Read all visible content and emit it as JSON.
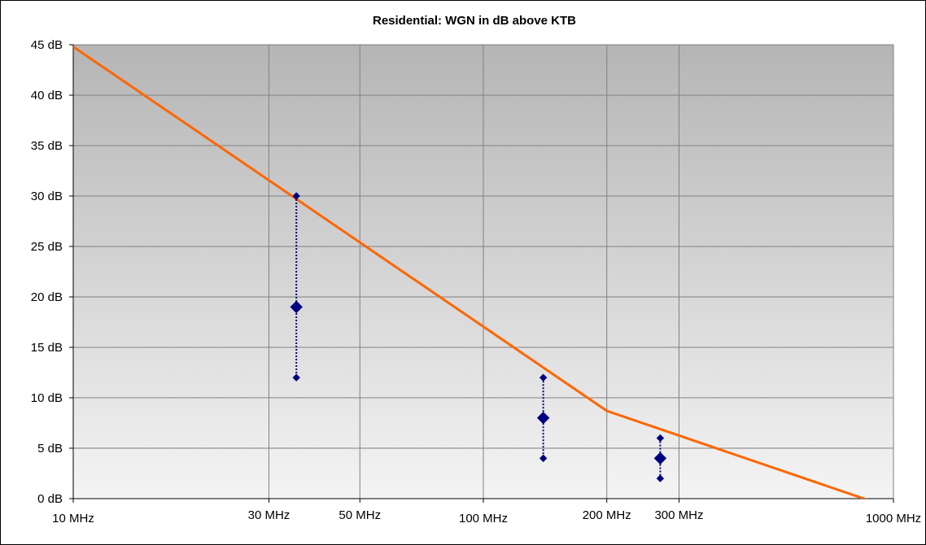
{
  "chart_data": {
    "type": "line",
    "title": "Residential: WGN in dB above KTB",
    "xlabel": "",
    "ylabel": "",
    "x_scale": "log",
    "xlim": [
      10,
      1000
    ],
    "ylim": [
      0,
      45
    ],
    "x_ticks": [
      {
        "value": 10,
        "label": "10 MHz"
      },
      {
        "value": 30,
        "label": "30 MHz"
      },
      {
        "value": 50,
        "label": "50 MHz"
      },
      {
        "value": 100,
        "label": "100 MHz"
      },
      {
        "value": 200,
        "label": "200 MHz"
      },
      {
        "value": 300,
        "label": "300 MHz"
      },
      {
        "value": 1000,
        "label": "1000 MHz"
      }
    ],
    "y_ticks": [
      {
        "value": 0,
        "label": "0 dB"
      },
      {
        "value": 5,
        "label": "5 dB"
      },
      {
        "value": 10,
        "label": "10 dB"
      },
      {
        "value": 15,
        "label": "15 dB"
      },
      {
        "value": 20,
        "label": "20 dB"
      },
      {
        "value": 25,
        "label": "25 dB"
      },
      {
        "value": 30,
        "label": "30 dB"
      },
      {
        "value": 35,
        "label": "35 dB"
      },
      {
        "value": 40,
        "label": "40 dB"
      },
      {
        "value": 45,
        "label": "45 dB"
      }
    ],
    "grid": true,
    "legend": "none",
    "series": [
      {
        "type": "line",
        "color": "#ff6600",
        "x": [
          10,
          200,
          1000
        ],
        "y": [
          44.8,
          8.7,
          -1
        ]
      },
      {
        "type": "scatter",
        "color": "#000080",
        "points": [
          {
            "x": 35,
            "median": 19,
            "high": 30,
            "low": 12
          },
          {
            "x": 140,
            "median": 8,
            "high": 12,
            "low": 4
          },
          {
            "x": 270,
            "median": 4,
            "high": 6,
            "low": 2
          }
        ]
      }
    ]
  },
  "colors": {
    "plot_top": "#b5b5b5",
    "plot_bottom": "#f4f4f4",
    "grid": "#808080",
    "curve": "#ff6600",
    "marker": "#000080"
  }
}
